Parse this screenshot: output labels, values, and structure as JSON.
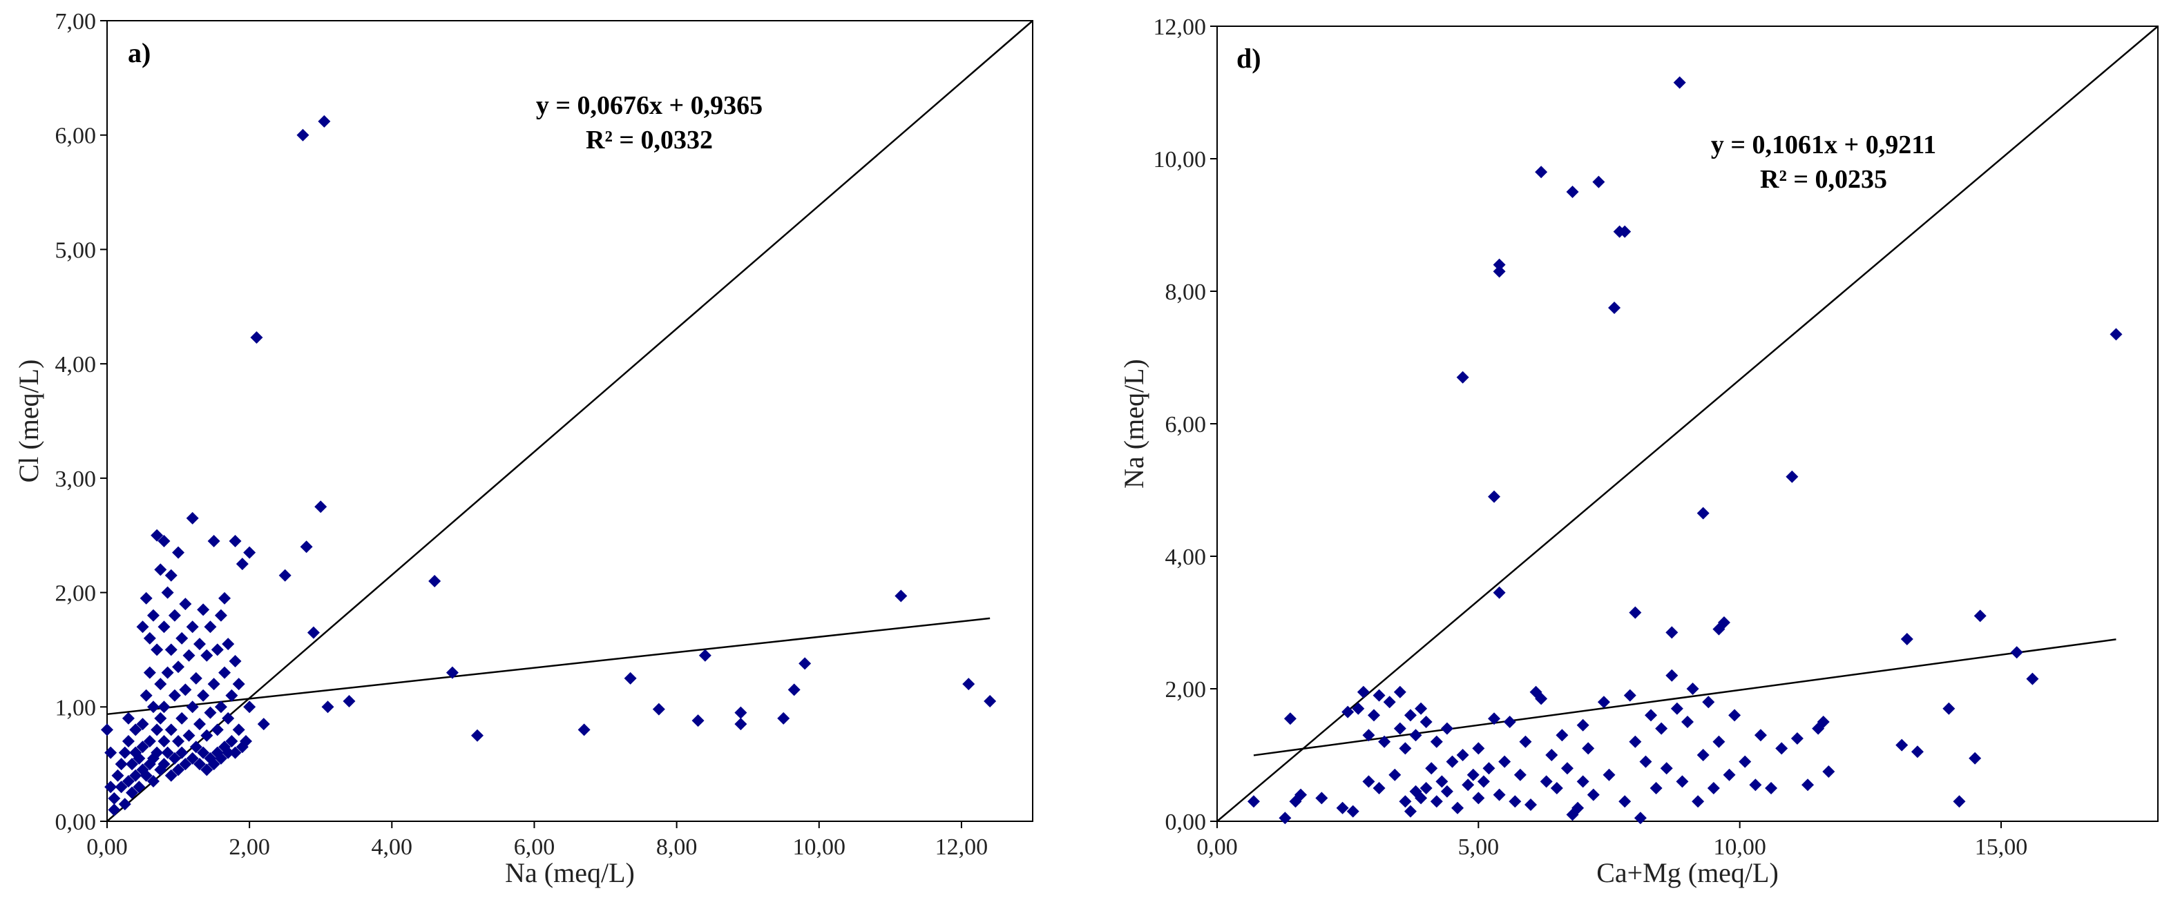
{
  "chart_data": [
    {
      "type": "scatter",
      "panel_label": "a)",
      "xlabel": "Na (meq/L)",
      "ylabel": "Cl (meq/L)",
      "xlim": [
        0,
        13
      ],
      "ylim": [
        0,
        7
      ],
      "xticks": [
        0,
        2,
        4,
        6,
        8,
        10,
        12
      ],
      "yticks": [
        0,
        1,
        2,
        3,
        4,
        5,
        6,
        7
      ],
      "xtick_labels": [
        "0,00",
        "2,00",
        "4,00",
        "6,00",
        "8,00",
        "10,00",
        "12,00"
      ],
      "ytick_labels": [
        "0,00",
        "1,00",
        "2,00",
        "3,00",
        "4,00",
        "5,00",
        "6,00",
        "7,00"
      ],
      "equation": "y = 0,0676x + 0,9365",
      "r2": "R² = 0,0332",
      "trendline": {
        "slope": 0.0676,
        "intercept": 0.9365,
        "x_range": [
          0,
          12.4
        ]
      },
      "reference_line": {
        "x": [
          0,
          13
        ],
        "y": [
          0,
          7
        ]
      },
      "marker_color": "#00008B",
      "points": [
        [
          0.0,
          0.8
        ],
        [
          0.05,
          0.6
        ],
        [
          0.05,
          0.3
        ],
        [
          0.1,
          0.1
        ],
        [
          0.1,
          0.2
        ],
        [
          0.15,
          0.4
        ],
        [
          0.2,
          0.3
        ],
        [
          0.2,
          0.5
        ],
        [
          0.25,
          0.15
        ],
        [
          0.25,
          0.6
        ],
        [
          0.3,
          0.35
        ],
        [
          0.3,
          0.7
        ],
        [
          0.3,
          0.9
        ],
        [
          0.35,
          0.25
        ],
        [
          0.35,
          0.5
        ],
        [
          0.4,
          0.4
        ],
        [
          0.4,
          0.6
        ],
        [
          0.4,
          0.8
        ],
        [
          0.45,
          0.3
        ],
        [
          0.45,
          0.55
        ],
        [
          0.5,
          0.45
        ],
        [
          0.5,
          0.65
        ],
        [
          0.5,
          0.85
        ],
        [
          0.5,
          1.7
        ],
        [
          0.55,
          0.4
        ],
        [
          0.55,
          1.1
        ],
        [
          0.55,
          1.95
        ],
        [
          0.6,
          0.5
        ],
        [
          0.6,
          0.7
        ],
        [
          0.6,
          1.3
        ],
        [
          0.6,
          1.6
        ],
        [
          0.65,
          0.35
        ],
        [
          0.65,
          0.55
        ],
        [
          0.65,
          1.0
        ],
        [
          0.65,
          1.8
        ],
        [
          0.7,
          0.6
        ],
        [
          0.7,
          0.8
        ],
        [
          0.7,
          1.5
        ],
        [
          0.7,
          2.5
        ],
        [
          0.75,
          0.45
        ],
        [
          0.75,
          0.9
        ],
        [
          0.75,
          1.2
        ],
        [
          0.75,
          2.2
        ],
        [
          0.8,
          0.5
        ],
        [
          0.8,
          0.7
        ],
        [
          0.8,
          1.0
        ],
        [
          0.8,
          1.7
        ],
        [
          0.8,
          2.45
        ],
        [
          0.85,
          0.6
        ],
        [
          0.85,
          1.3
        ],
        [
          0.85,
          2.0
        ],
        [
          0.9,
          0.4
        ],
        [
          0.9,
          0.8
        ],
        [
          0.9,
          1.5
        ],
        [
          0.9,
          2.15
        ],
        [
          0.95,
          0.55
        ],
        [
          0.95,
          1.1
        ],
        [
          0.95,
          1.8
        ],
        [
          1.0,
          0.45
        ],
        [
          1.0,
          0.7
        ],
        [
          1.0,
          1.35
        ],
        [
          1.0,
          2.35
        ],
        [
          1.05,
          0.6
        ],
        [
          1.05,
          0.9
        ],
        [
          1.05,
          1.6
        ],
        [
          1.1,
          0.5
        ],
        [
          1.1,
          1.15
        ],
        [
          1.1,
          1.9
        ],
        [
          1.15,
          0.75
        ],
        [
          1.15,
          1.45
        ],
        [
          1.2,
          0.55
        ],
        [
          1.2,
          1.0
        ],
        [
          1.2,
          1.7
        ],
        [
          1.2,
          2.65
        ],
        [
          1.25,
          0.65
        ],
        [
          1.25,
          1.25
        ],
        [
          1.3,
          0.5
        ],
        [
          1.3,
          0.85
        ],
        [
          1.3,
          1.55
        ],
        [
          1.35,
          0.6
        ],
        [
          1.35,
          1.1
        ],
        [
          1.35,
          1.85
        ],
        [
          1.4,
          0.45
        ],
        [
          1.4,
          0.75
        ],
        [
          1.4,
          1.45
        ],
        [
          1.45,
          0.55
        ],
        [
          1.45,
          0.95
        ],
        [
          1.45,
          1.7
        ],
        [
          1.5,
          0.5
        ],
        [
          1.5,
          1.2
        ],
        [
          1.5,
          2.45
        ],
        [
          1.55,
          0.6
        ],
        [
          1.55,
          0.8
        ],
        [
          1.55,
          1.5
        ],
        [
          1.6,
          0.55
        ],
        [
          1.6,
          1.0
        ],
        [
          1.6,
          1.8
        ],
        [
          1.65,
          0.65
        ],
        [
          1.65,
          1.3
        ],
        [
          1.65,
          1.95
        ],
        [
          1.7,
          0.6
        ],
        [
          1.7,
          0.9
        ],
        [
          1.7,
          1.55
        ],
        [
          1.75,
          0.7
        ],
        [
          1.75,
          1.1
        ],
        [
          1.8,
          0.6
        ],
        [
          1.8,
          1.4
        ],
        [
          1.8,
          2.45
        ],
        [
          1.85,
          0.8
        ],
        [
          1.85,
          1.2
        ],
        [
          1.9,
          0.65
        ],
        [
          1.9,
          2.25
        ],
        [
          1.95,
          0.7
        ],
        [
          2.0,
          1.0
        ],
        [
          2.0,
          2.35
        ],
        [
          2.1,
          4.23
        ],
        [
          2.2,
          0.85
        ],
        [
          2.5,
          2.15
        ],
        [
          2.75,
          6.0
        ],
        [
          2.8,
          2.4
        ],
        [
          2.9,
          1.65
        ],
        [
          3.0,
          2.75
        ],
        [
          3.05,
          6.12
        ],
        [
          3.1,
          1.0
        ],
        [
          3.4,
          1.05
        ],
        [
          4.6,
          2.1
        ],
        [
          4.85,
          1.3
        ],
        [
          5.2,
          0.75
        ],
        [
          6.7,
          0.8
        ],
        [
          7.35,
          1.25
        ],
        [
          7.75,
          0.98
        ],
        [
          8.3,
          0.88
        ],
        [
          8.4,
          1.45
        ],
        [
          8.9,
          0.95
        ],
        [
          8.9,
          0.85
        ],
        [
          9.5,
          0.9
        ],
        [
          9.65,
          1.15
        ],
        [
          9.8,
          1.38
        ],
        [
          11.15,
          1.97
        ],
        [
          12.1,
          1.2
        ],
        [
          12.4,
          1.05
        ]
      ]
    },
    {
      "type": "scatter",
      "panel_label": "d)",
      "xlabel": "Ca+Mg (meq/L)",
      "ylabel": "Na (meq/L)",
      "xlim": [
        0,
        18
      ],
      "ylim": [
        0,
        12
      ],
      "xticks": [
        0,
        5,
        10,
        15
      ],
      "yticks": [
        0,
        2,
        4,
        6,
        8,
        10,
        12
      ],
      "xtick_labels": [
        "0,00",
        "5,00",
        "10,00",
        "15,00"
      ],
      "ytick_labels": [
        "0,00",
        "2,00",
        "4,00",
        "6,00",
        "8,00",
        "10,00",
        "12,00"
      ],
      "equation": "y = 0,1061x + 0,9211",
      "r2": "R² = 0,0235",
      "trendline": {
        "slope": 0.1061,
        "intercept": 0.9211,
        "x_range": [
          0.7,
          17.2
        ]
      },
      "reference_line": {
        "x": [
          0,
          18
        ],
        "y": [
          0,
          12
        ]
      },
      "marker_color": "#00008B",
      "points": [
        [
          0.7,
          0.3
        ],
        [
          1.3,
          0.05
        ],
        [
          1.4,
          1.55
        ],
        [
          1.5,
          0.3
        ],
        [
          1.6,
          0.4
        ],
        [
          2.0,
          0.35
        ],
        [
          2.4,
          0.2
        ],
        [
          2.5,
          1.65
        ],
        [
          2.6,
          0.15
        ],
        [
          2.7,
          1.7
        ],
        [
          2.8,
          1.95
        ],
        [
          2.9,
          0.6
        ],
        [
          2.9,
          1.3
        ],
        [
          3.0,
          1.6
        ],
        [
          3.1,
          1.9
        ],
        [
          3.1,
          0.5
        ],
        [
          3.2,
          1.2
        ],
        [
          3.3,
          1.8
        ],
        [
          3.4,
          0.7
        ],
        [
          3.5,
          1.4
        ],
        [
          3.5,
          1.95
        ],
        [
          3.6,
          0.3
        ],
        [
          3.6,
          1.1
        ],
        [
          3.7,
          1.6
        ],
        [
          3.7,
          0.15
        ],
        [
          3.8,
          0.45
        ],
        [
          3.8,
          1.3
        ],
        [
          3.9,
          0.35
        ],
        [
          3.9,
          1.7
        ],
        [
          4.0,
          0.5
        ],
        [
          4.0,
          1.5
        ],
        [
          4.1,
          0.8
        ],
        [
          4.2,
          0.3
        ],
        [
          4.2,
          1.2
        ],
        [
          4.3,
          0.6
        ],
        [
          4.4,
          1.4
        ],
        [
          4.4,
          0.45
        ],
        [
          4.5,
          0.9
        ],
        [
          4.6,
          0.2
        ],
        [
          4.7,
          6.7
        ],
        [
          4.7,
          1.0
        ],
        [
          4.8,
          0.55
        ],
        [
          4.9,
          0.7
        ],
        [
          5.0,
          0.35
        ],
        [
          5.0,
          1.1
        ],
        [
          5.1,
          0.6
        ],
        [
          5.2,
          0.8
        ],
        [
          5.3,
          4.9
        ],
        [
          5.3,
          1.55
        ],
        [
          5.4,
          8.4
        ],
        [
          5.4,
          8.3
        ],
        [
          5.4,
          3.45
        ],
        [
          5.4,
          0.4
        ],
        [
          5.5,
          0.9
        ],
        [
          5.6,
          1.5
        ],
        [
          5.7,
          0.3
        ],
        [
          5.8,
          0.7
        ],
        [
          5.9,
          1.2
        ],
        [
          6.0,
          0.25
        ],
        [
          6.1,
          1.95
        ],
        [
          6.2,
          9.8
        ],
        [
          6.2,
          1.85
        ],
        [
          6.3,
          0.6
        ],
        [
          6.4,
          1.0
        ],
        [
          6.5,
          0.5
        ],
        [
          6.6,
          1.3
        ],
        [
          6.7,
          0.8
        ],
        [
          6.8,
          9.5
        ],
        [
          6.8,
          0.1
        ],
        [
          6.9,
          0.2
        ],
        [
          7.0,
          1.45
        ],
        [
          7.0,
          0.6
        ],
        [
          7.1,
          1.1
        ],
        [
          7.2,
          0.4
        ],
        [
          7.3,
          9.65
        ],
        [
          7.4,
          1.8
        ],
        [
          7.5,
          0.7
        ],
        [
          7.6,
          7.75
        ],
        [
          7.7,
          8.9
        ],
        [
          7.8,
          8.9
        ],
        [
          7.8,
          0.3
        ],
        [
          7.9,
          1.9
        ],
        [
          8.0,
          3.15
        ],
        [
          8.0,
          1.2
        ],
        [
          8.1,
          0.05
        ],
        [
          8.2,
          0.9
        ],
        [
          8.3,
          1.6
        ],
        [
          8.4,
          0.5
        ],
        [
          8.5,
          1.4
        ],
        [
          8.6,
          0.8
        ],
        [
          8.7,
          2.85
        ],
        [
          8.7,
          2.2
        ],
        [
          8.8,
          1.7
        ],
        [
          8.85,
          11.15
        ],
        [
          8.9,
          0.6
        ],
        [
          9.0,
          1.5
        ],
        [
          9.1,
          2.0
        ],
        [
          9.2,
          0.3
        ],
        [
          9.3,
          4.65
        ],
        [
          9.3,
          1.0
        ],
        [
          9.4,
          1.8
        ],
        [
          9.5,
          0.5
        ],
        [
          9.6,
          2.9
        ],
        [
          9.6,
          1.2
        ],
        [
          9.7,
          3.0
        ],
        [
          9.8,
          0.7
        ],
        [
          9.9,
          1.6
        ],
        [
          10.1,
          0.9
        ],
        [
          10.3,
          0.55
        ],
        [
          10.4,
          1.3
        ],
        [
          10.6,
          0.5
        ],
        [
          10.8,
          1.1
        ],
        [
          11.0,
          5.2
        ],
        [
          11.1,
          1.25
        ],
        [
          11.3,
          0.55
        ],
        [
          11.5,
          1.4
        ],
        [
          11.6,
          1.5
        ],
        [
          11.7,
          0.75
        ],
        [
          13.1,
          1.15
        ],
        [
          13.2,
          2.75
        ],
        [
          13.4,
          1.05
        ],
        [
          14.0,
          1.7
        ],
        [
          14.2,
          0.3
        ],
        [
          14.5,
          0.95
        ],
        [
          14.6,
          3.1
        ],
        [
          15.3,
          2.55
        ],
        [
          15.6,
          2.15
        ],
        [
          17.2,
          7.35
        ]
      ]
    }
  ]
}
